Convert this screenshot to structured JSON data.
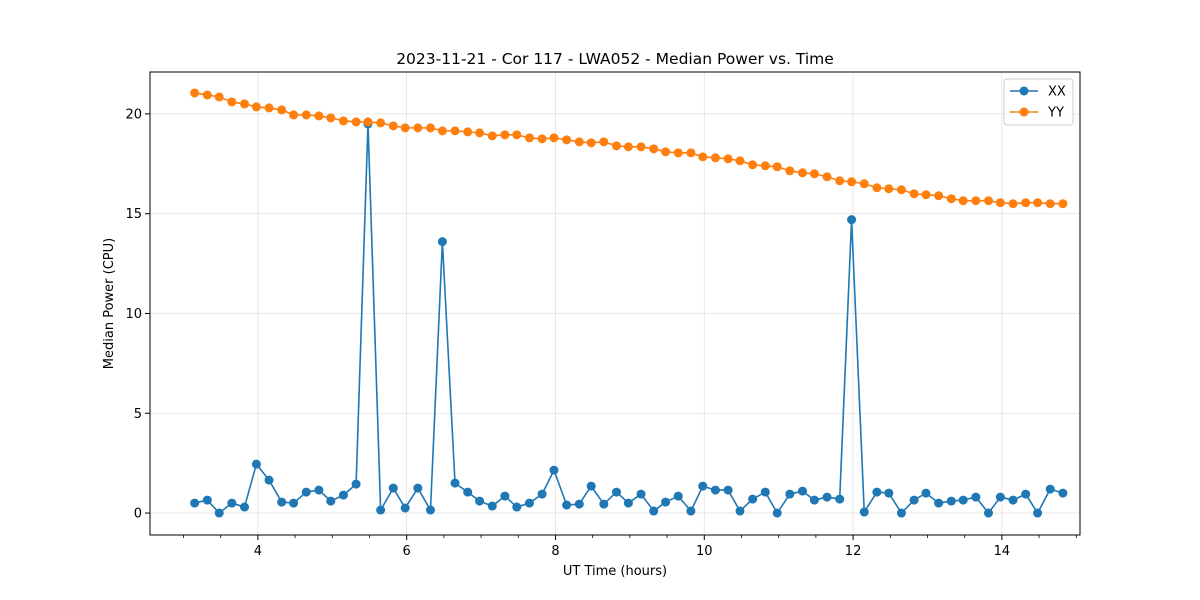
{
  "chart_data": {
    "type": "line",
    "title": "2023-11-21 - Cor 117 - LWA052 - Median Power vs. Time",
    "xlabel": "UT Time (hours)",
    "ylabel": "Median Power (CPU)",
    "xlim": [
      2.55,
      15.05
    ],
    "ylim": [
      -1.1,
      22.1
    ],
    "xticks": [
      4,
      6,
      8,
      10,
      12,
      14
    ],
    "xtick_labels": [
      "4",
      "6",
      "8",
      "10",
      "12",
      "14"
    ],
    "minor_xtick_step": 0.5,
    "yticks": [
      0,
      5,
      10,
      15,
      20
    ],
    "ytick_labels": [
      "0",
      "5",
      "10",
      "15",
      "20"
    ],
    "grid": true,
    "legend_position": "upper right",
    "x": [
      3.15,
      3.32,
      3.48,
      3.65,
      3.82,
      3.98,
      4.15,
      4.32,
      4.48,
      4.65,
      4.82,
      4.98,
      5.15,
      5.32,
      5.48,
      5.65,
      5.82,
      5.98,
      6.15,
      6.32,
      6.48,
      6.65,
      6.82,
      6.98,
      7.15,
      7.32,
      7.48,
      7.65,
      7.82,
      7.98,
      8.15,
      8.32,
      8.48,
      8.65,
      8.82,
      8.98,
      9.15,
      9.32,
      9.48,
      9.65,
      9.82,
      9.98,
      10.15,
      10.32,
      10.48,
      10.65,
      10.82,
      10.98,
      11.15,
      11.32,
      11.48,
      11.65,
      11.82,
      11.98,
      12.15,
      12.32,
      12.48,
      12.65,
      12.82,
      12.98,
      13.15,
      13.32,
      13.48,
      13.65,
      13.82,
      13.98,
      14.15,
      14.32,
      14.48,
      14.65,
      14.82
    ],
    "series": [
      {
        "name": "XX",
        "color": "#1f77b4",
        "values": [
          0.5,
          0.65,
          0.0,
          0.5,
          0.3,
          2.45,
          1.65,
          0.55,
          0.5,
          1.05,
          1.15,
          0.6,
          0.9,
          1.45,
          19.5,
          0.15,
          1.25,
          0.25,
          1.25,
          0.15,
          13.6,
          1.5,
          1.05,
          0.6,
          0.35,
          0.85,
          0.3,
          0.5,
          0.95,
          2.15,
          0.4,
          0.45,
          1.35,
          0.45,
          1.05,
          0.5,
          0.95,
          0.1,
          0.55,
          0.85,
          0.1,
          1.35,
          1.15,
          1.15,
          0.1,
          0.7,
          1.05,
          0.0,
          0.95,
          1.1,
          0.65,
          0.8,
          0.7,
          14.7,
          0.05,
          1.05,
          1.0,
          0.0,
          0.65,
          1.0,
          0.5,
          0.6,
          0.65,
          0.8,
          0.0,
          0.8,
          0.65,
          0.95,
          0.0,
          1.2,
          1.0
        ]
      },
      {
        "name": "YY",
        "color": "#ff7f0e",
        "values": [
          21.05,
          20.95,
          20.85,
          20.6,
          20.5,
          20.35,
          20.3,
          20.2,
          19.95,
          19.95,
          19.9,
          19.8,
          19.65,
          19.6,
          19.6,
          19.55,
          19.4,
          19.3,
          19.3,
          19.3,
          19.15,
          19.15,
          19.1,
          19.05,
          18.9,
          18.95,
          18.95,
          18.8,
          18.75,
          18.8,
          18.7,
          18.6,
          18.55,
          18.6,
          18.4,
          18.35,
          18.35,
          18.25,
          18.1,
          18.05,
          18.05,
          17.85,
          17.8,
          17.75,
          17.65,
          17.45,
          17.4,
          17.35,
          17.15,
          17.05,
          17.0,
          16.85,
          16.65,
          16.6,
          16.5,
          16.3,
          16.25,
          16.2,
          16.0,
          15.95,
          15.9,
          15.75,
          15.65,
          15.65,
          15.65,
          15.55,
          15.5,
          15.55,
          15.55,
          15.5,
          15.5
        ]
      }
    ]
  }
}
